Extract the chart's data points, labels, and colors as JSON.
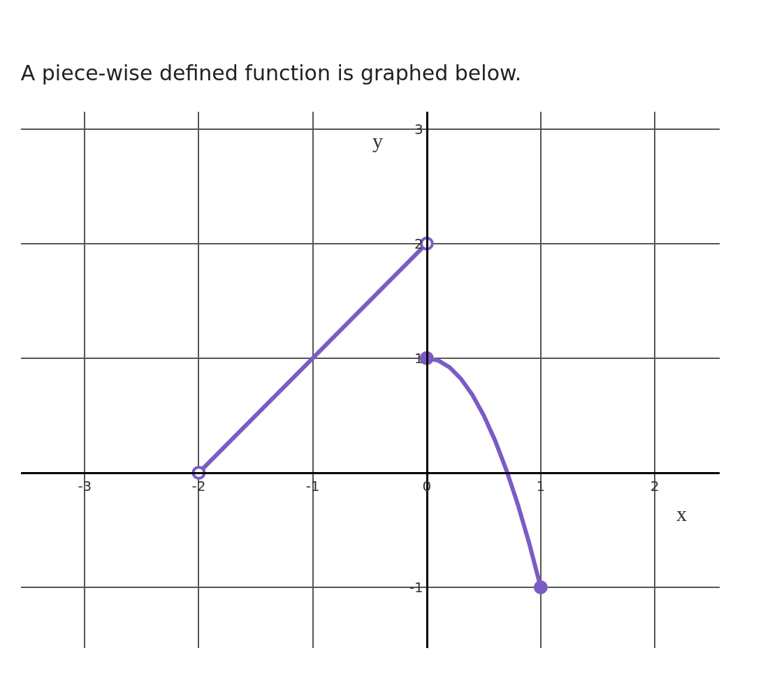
{
  "chart_data": {
    "type": "line",
    "title": "A piece-wise defined function is graphed below.",
    "xlabel": "x",
    "ylabel": "y",
    "xlim": [
      -3.56,
      2.57
    ],
    "ylim": [
      -1.53,
      3.15
    ],
    "xticks": [
      -3,
      -2,
      -1,
      0,
      1,
      2
    ],
    "yticks": [
      -1,
      1,
      2,
      3
    ],
    "grid": true,
    "legend": false,
    "line_style": "solid",
    "series": [
      {
        "color": "#7b5cc4",
        "x": [
          -2,
          0
        ],
        "values": [
          0,
          2
        ],
        "marker": "none"
      },
      {
        "color": "#7b5cc4",
        "x": [
          0,
          0.1,
          0.2,
          0.3,
          0.4,
          0.5,
          0.6,
          0.7,
          0.8,
          0.9,
          1
        ],
        "values": [
          1,
          0.98,
          0.92,
          0.82,
          0.68,
          0.5,
          0.28,
          0.02,
          -0.28,
          -0.62,
          -1
        ],
        "marker": "none"
      },
      {
        "type": "scatter",
        "color": "#7b5cc4",
        "x": [
          0,
          1
        ],
        "values": [
          1,
          -1
        ],
        "marker": "circle"
      },
      {
        "type": "scatter",
        "color": "#ffffff",
        "x": [
          -2,
          0
        ],
        "values": [
          0,
          2
        ],
        "marker": "circle"
      }
    ]
  }
}
